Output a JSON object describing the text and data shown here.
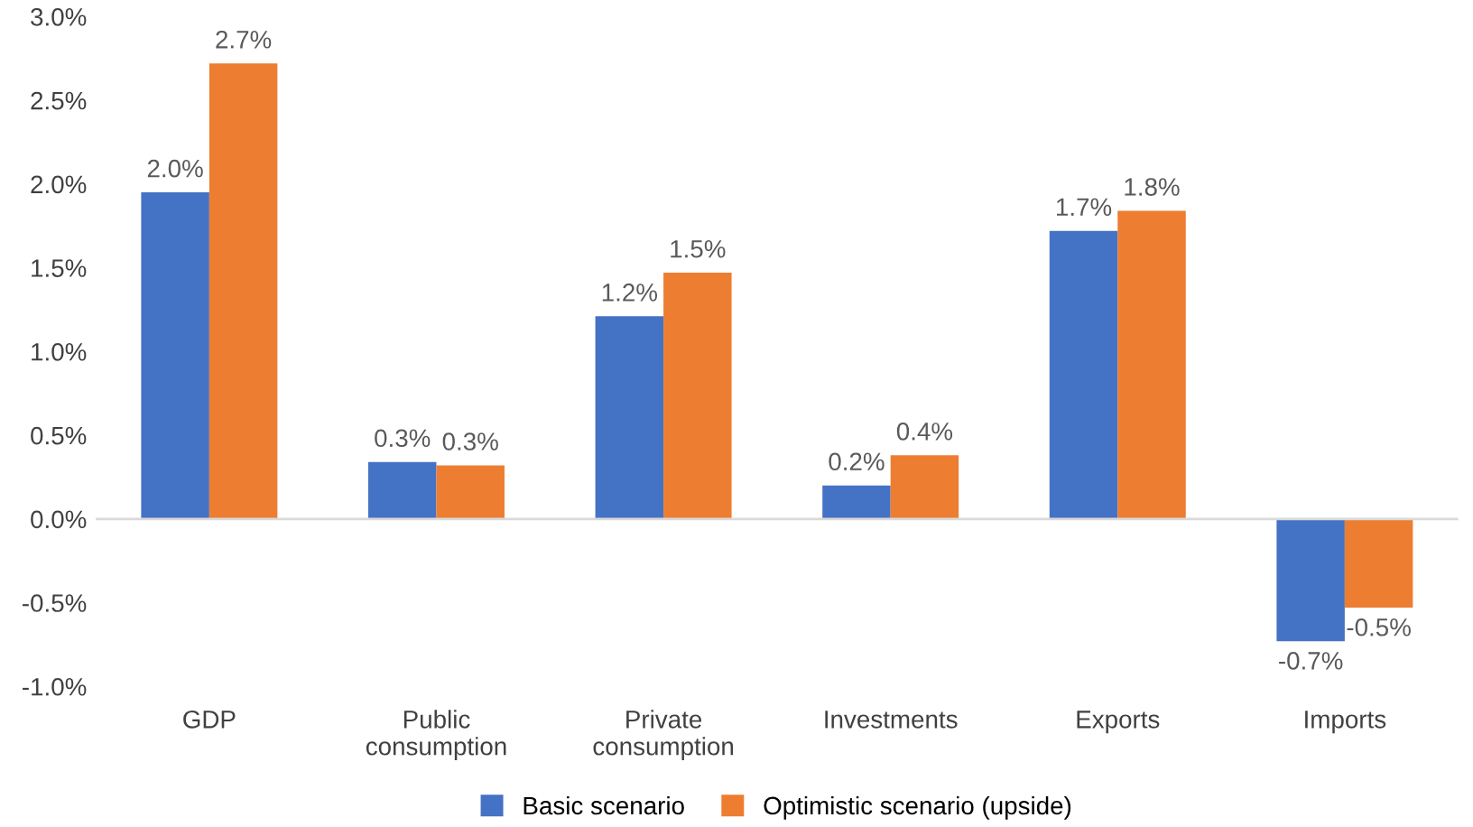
{
  "chart_data": {
    "type": "bar",
    "categories": [
      "GDP",
      "Public\nconsumption",
      "Private\nconsumption",
      "Investments",
      "Exports",
      "Imports"
    ],
    "series": [
      {
        "name": "Basic scenario",
        "color": "#4472c4",
        "values": [
          1.95,
          0.34,
          1.21,
          0.2,
          1.72,
          -0.73
        ],
        "value_labels": [
          "2.0%",
          "0.3%",
          "1.2%",
          "0.2%",
          "1.7%",
          "-0.7%"
        ]
      },
      {
        "name": "Optimistic scenario (upside)",
        "color": "#ed7d31",
        "values": [
          2.72,
          0.32,
          1.47,
          0.38,
          1.84,
          -0.53
        ],
        "value_labels": [
          "2.7%",
          "0.3%",
          "1.5%",
          "0.4%",
          "1.8%",
          "-0.5%"
        ]
      }
    ],
    "ylim": [
      -1,
      3
    ],
    "yticks": [
      {
        "value": -1,
        "label": "-1.0%"
      },
      {
        "value": -0.5,
        "label": "-0.5%"
      },
      {
        "value": 0,
        "label": "0.0%"
      },
      {
        "value": 0.5,
        "label": "0.5%"
      },
      {
        "value": 1,
        "label": "1.0%"
      },
      {
        "value": 1.5,
        "label": "1.5%"
      },
      {
        "value": 2,
        "label": "2.0%"
      },
      {
        "value": 2.5,
        "label": "2.5%"
      },
      {
        "value": 3,
        "label": "3.0%"
      }
    ],
    "ref_lines": [
      {
        "axis": "y",
        "value": 0,
        "color": "#d9d9d9"
      }
    ],
    "grid": false,
    "legend": "bottom"
  }
}
